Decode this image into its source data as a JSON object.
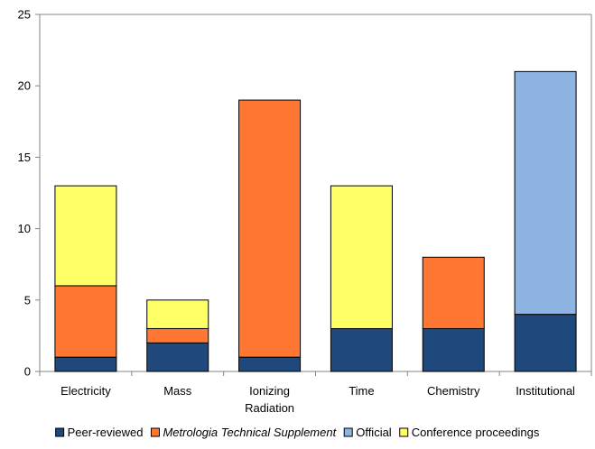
{
  "chart_data": {
    "type": "bar",
    "stacked": true,
    "categories": [
      [
        "Electricity"
      ],
      [
        "Mass"
      ],
      [
        "Ionizing",
        "Radiation"
      ],
      [
        "Time"
      ],
      [
        "Chemistry"
      ],
      [
        "Institutional"
      ]
    ],
    "series": [
      {
        "name": "Peer-reviewed",
        "italic": false,
        "color": "#1F497D",
        "values": [
          1,
          2,
          1,
          3,
          3,
          4
        ]
      },
      {
        "name": "Metrologia Technical Supplement",
        "italic": true,
        "color": "#FF7733",
        "values": [
          5,
          1,
          18,
          0,
          5,
          0
        ]
      },
      {
        "name": "Official",
        "italic": false,
        "color": "#8EB4E3",
        "values": [
          0,
          0,
          0,
          0,
          0,
          17
        ]
      },
      {
        "name": "Conference proceedings",
        "italic": false,
        "color": "#FFFF66",
        "values": [
          7,
          2,
          0,
          10,
          0,
          0
        ]
      }
    ],
    "ylim": [
      0,
      25
    ],
    "yticks": [
      "0",
      "5",
      "10",
      "15",
      "20",
      "25"
    ],
    "xlabel": "",
    "ylabel": "",
    "title": "",
    "grid": false,
    "legend_position": "bottom"
  }
}
